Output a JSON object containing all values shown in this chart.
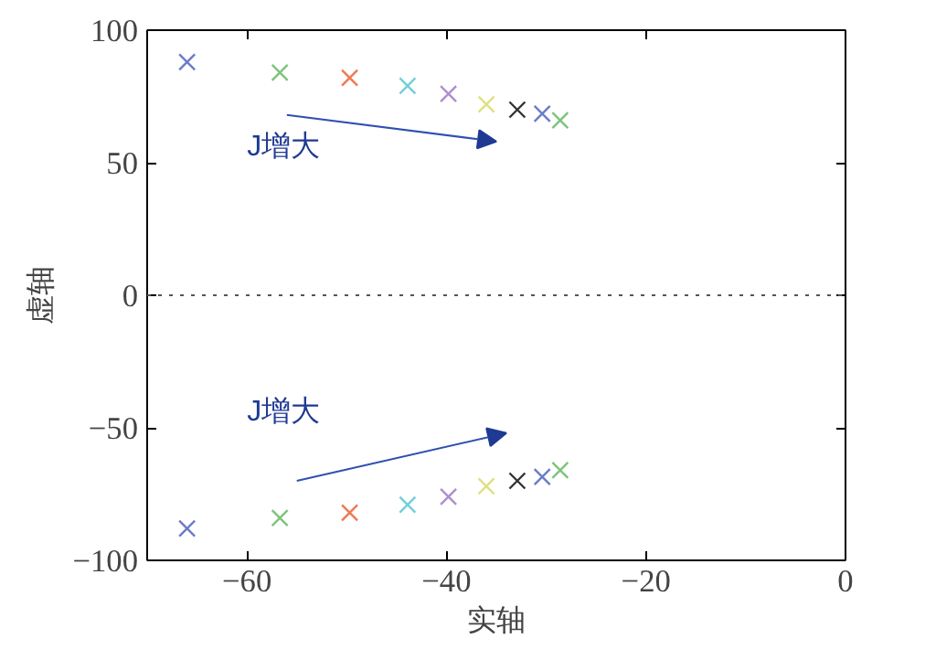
{
  "chart_data": {
    "type": "scatter",
    "xlabel": "实轴",
    "ylabel": "虚轴",
    "xlim": [
      -70,
      0
    ],
    "ylim": [
      -100,
      100
    ],
    "xticks": [
      -60,
      -40,
      -20,
      0
    ],
    "yticks": [
      -100,
      -50,
      0,
      50,
      100
    ],
    "grid": false,
    "marker": "cross",
    "series": [
      {
        "x": [
          -66,
          -56.7,
          -49.7,
          -43.9,
          -39.8,
          -36,
          -32.9,
          -30.4,
          -28.6,
          -66,
          -56.7,
          -49.7,
          -43.9,
          -39.8,
          -36,
          -32.9,
          -30.4,
          -28.6
        ],
        "values": [
          88,
          84,
          82,
          79,
          76,
          72,
          70,
          68.5,
          66,
          -88,
          -84,
          -82,
          -79,
          -76,
          -72,
          -70,
          -68.5,
          -66
        ],
        "colors": [
          "#6a7cc8",
          "#7cc47c",
          "#f07850",
          "#70d0d8",
          "#b08cd0",
          "#e0e080",
          "#333333",
          "#6a7cc8",
          "#7cc47c",
          "#6a7cc8",
          "#7cc47c",
          "#f07850",
          "#70d0d8",
          "#b08cd0",
          "#e0e080",
          "#333333",
          "#6a7cc8",
          "#7cc47c"
        ]
      }
    ],
    "ref_lines": [
      {
        "axis": "y",
        "value": 0,
        "label": null,
        "color": "#555555",
        "line_style": "dotted"
      }
    ],
    "annotations": [
      "J增大",
      "J增大"
    ]
  }
}
